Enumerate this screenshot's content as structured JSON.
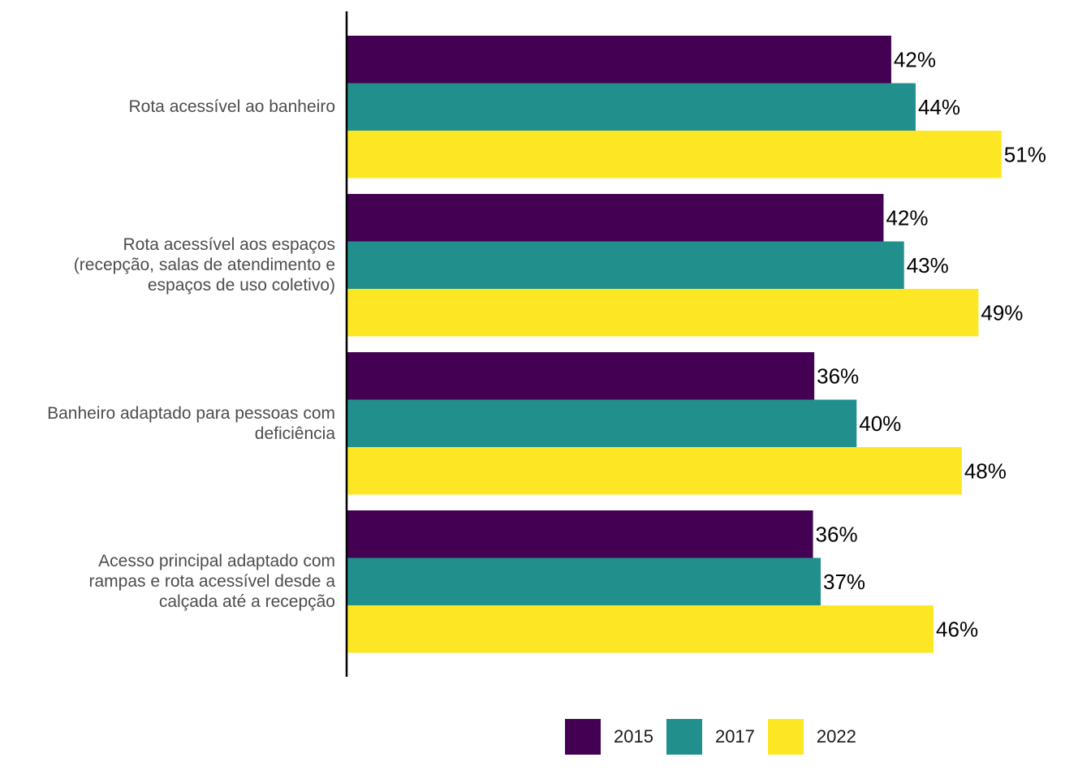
{
  "chart_data": {
    "type": "bar",
    "orientation": "horizontal",
    "categories": [
      "Rota acessível ao banheiro",
      "Rota acessível aos espaços (recepção, salas de atendimento e espaços de uso coletivo)",
      "Banheiro adaptado para pessoas com deficiência",
      "Acesso principal adaptado com rampas e rota acessível desde a calçada até a recepção"
    ],
    "category_lines": [
      [
        "Rota acessível ao banheiro"
      ],
      [
        "Rota acessível aos espaços",
        "(recepção, salas de atendimento e",
        "espaços de uso coletivo)"
      ],
      [
        "Banheiro adaptado para pessoas com",
        "deficiência"
      ],
      [
        "Acesso principal adaptado com",
        "rampas e rota acessível desde a",
        "calçada até a recepção"
      ]
    ],
    "series": [
      {
        "name": "2015",
        "color": "#440154",
        "values": [
          42.4,
          41.8,
          36.4,
          36.3
        ],
        "labels": [
          "42%",
          "42%",
          "36%",
          "36%"
        ]
      },
      {
        "name": "2017",
        "color": "#21908C",
        "values": [
          44.3,
          43.4,
          39.7,
          36.9
        ],
        "labels": [
          "44%",
          "43%",
          "40%",
          "37%"
        ]
      },
      {
        "name": "2022",
        "color": "#FDE725",
        "values": [
          51.0,
          49.2,
          47.9,
          45.7
        ],
        "labels": [
          "51%",
          "49%",
          "48%",
          "46%"
        ]
      }
    ],
    "xlim": [
      0,
      58
    ],
    "title": "",
    "xlabel": "",
    "ylabel": "",
    "grid": false,
    "legend_position": "bottom"
  }
}
